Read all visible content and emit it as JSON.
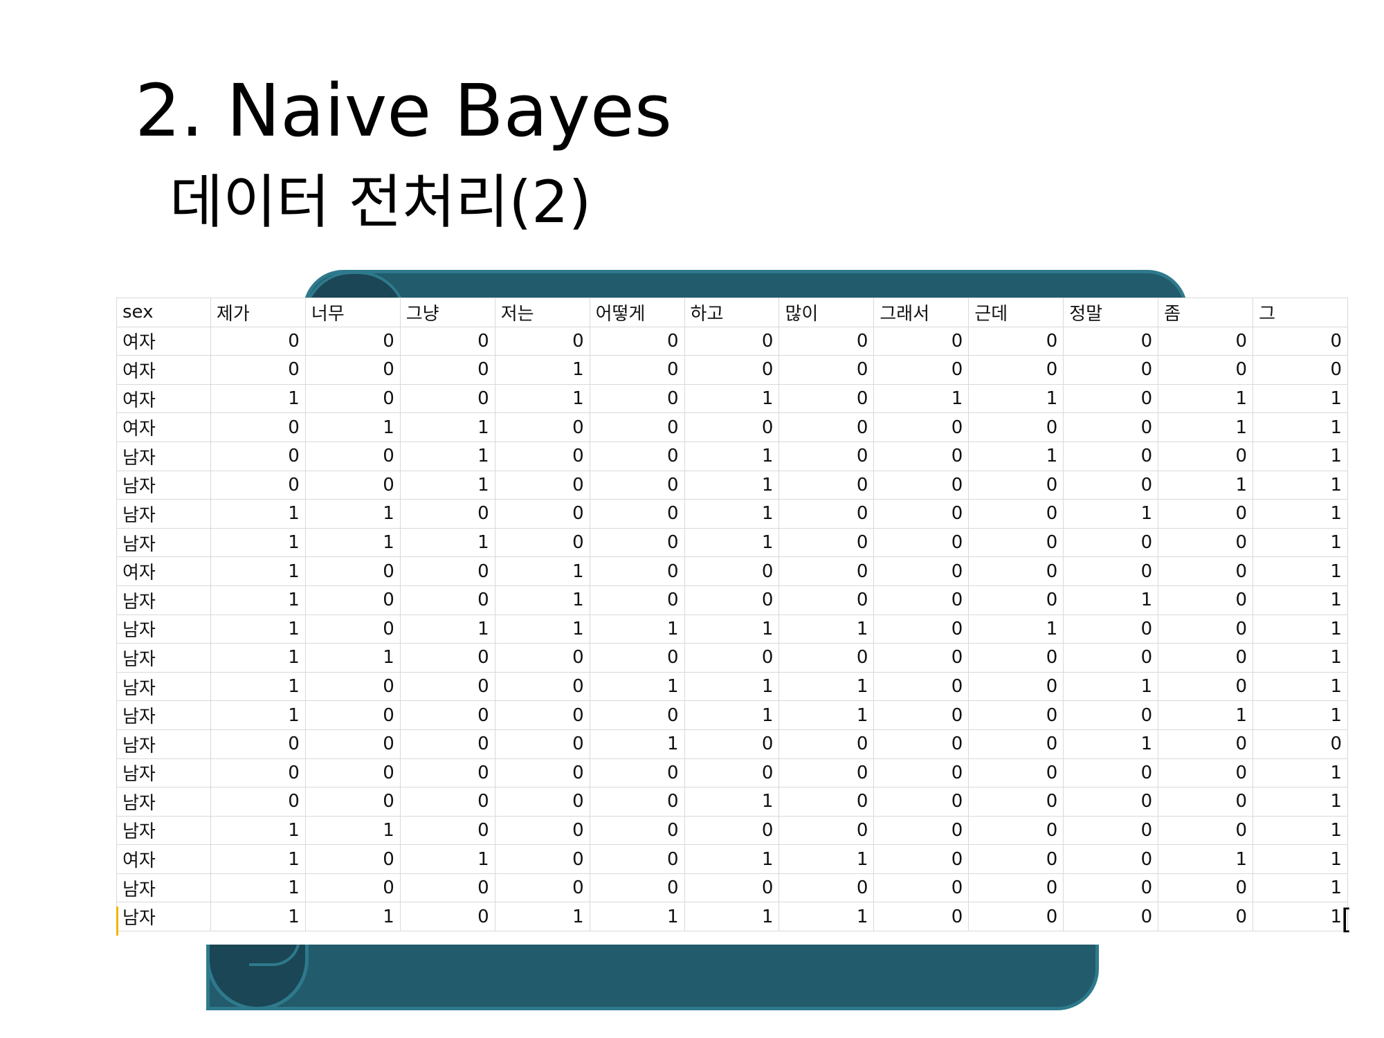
{
  "slide": {
    "title": "2. Naive Bayes",
    "subtitle": "데이터 전처리(2)",
    "accent_color": "#225b6b"
  },
  "sheet": {
    "columns": [
      "sex",
      "제가",
      "너무",
      "그냥",
      "저는",
      "어떻게",
      "하고",
      "많이",
      "그래서",
      "근데",
      "정말",
      "좀",
      "그"
    ],
    "rows": [
      [
        "여자",
        "0",
        "0",
        "0",
        "0",
        "0",
        "0",
        "0",
        "0",
        "0",
        "0",
        "0",
        "0"
      ],
      [
        "여자",
        "0",
        "0",
        "0",
        "1",
        "0",
        "0",
        "0",
        "0",
        "0",
        "0",
        "0",
        "0"
      ],
      [
        "여자",
        "1",
        "0",
        "0",
        "1",
        "0",
        "1",
        "0",
        "1",
        "1",
        "0",
        "1",
        "1"
      ],
      [
        "여자",
        "0",
        "1",
        "1",
        "0",
        "0",
        "0",
        "0",
        "0",
        "0",
        "0",
        "1",
        "1"
      ],
      [
        "남자",
        "0",
        "0",
        "1",
        "0",
        "0",
        "1",
        "0",
        "0",
        "1",
        "0",
        "0",
        "1"
      ],
      [
        "남자",
        "0",
        "0",
        "1",
        "0",
        "0",
        "1",
        "0",
        "0",
        "0",
        "0",
        "1",
        "1"
      ],
      [
        "남자",
        "1",
        "1",
        "0",
        "0",
        "0",
        "1",
        "0",
        "0",
        "0",
        "1",
        "0",
        "1"
      ],
      [
        "남자",
        "1",
        "1",
        "1",
        "0",
        "0",
        "1",
        "0",
        "0",
        "0",
        "0",
        "0",
        "1"
      ],
      [
        "여자",
        "1",
        "0",
        "0",
        "1",
        "0",
        "0",
        "0",
        "0",
        "0",
        "0",
        "0",
        "1"
      ],
      [
        "남자",
        "1",
        "0",
        "0",
        "1",
        "0",
        "0",
        "0",
        "0",
        "0",
        "1",
        "0",
        "1"
      ],
      [
        "남자",
        "1",
        "0",
        "1",
        "1",
        "1",
        "1",
        "1",
        "0",
        "1",
        "0",
        "0",
        "1"
      ],
      [
        "남자",
        "1",
        "1",
        "0",
        "0",
        "0",
        "0",
        "0",
        "0",
        "0",
        "0",
        "0",
        "1"
      ],
      [
        "남자",
        "1",
        "0",
        "0",
        "0",
        "1",
        "1",
        "1",
        "0",
        "0",
        "1",
        "0",
        "1"
      ],
      [
        "남자",
        "1",
        "0",
        "0",
        "0",
        "0",
        "1",
        "1",
        "0",
        "0",
        "0",
        "1",
        "1"
      ],
      [
        "남자",
        "0",
        "0",
        "0",
        "0",
        "1",
        "0",
        "0",
        "0",
        "0",
        "1",
        "0",
        "0"
      ],
      [
        "남자",
        "0",
        "0",
        "0",
        "0",
        "0",
        "0",
        "0",
        "0",
        "0",
        "0",
        "0",
        "1"
      ],
      [
        "남자",
        "0",
        "0",
        "0",
        "0",
        "0",
        "1",
        "0",
        "0",
        "0",
        "0",
        "0",
        "1"
      ],
      [
        "남자",
        "1",
        "1",
        "0",
        "0",
        "0",
        "0",
        "0",
        "0",
        "0",
        "0",
        "0",
        "1"
      ],
      [
        "여자",
        "1",
        "0",
        "1",
        "0",
        "0",
        "1",
        "1",
        "0",
        "0",
        "0",
        "1",
        "1"
      ],
      [
        "남자",
        "1",
        "0",
        "0",
        "0",
        "0",
        "0",
        "0",
        "0",
        "0",
        "0",
        "0",
        "1"
      ],
      [
        "남자",
        "1",
        "1",
        "0",
        "1",
        "1",
        "1",
        "1",
        "0",
        "0",
        "0",
        "0",
        "1"
      ]
    ]
  }
}
